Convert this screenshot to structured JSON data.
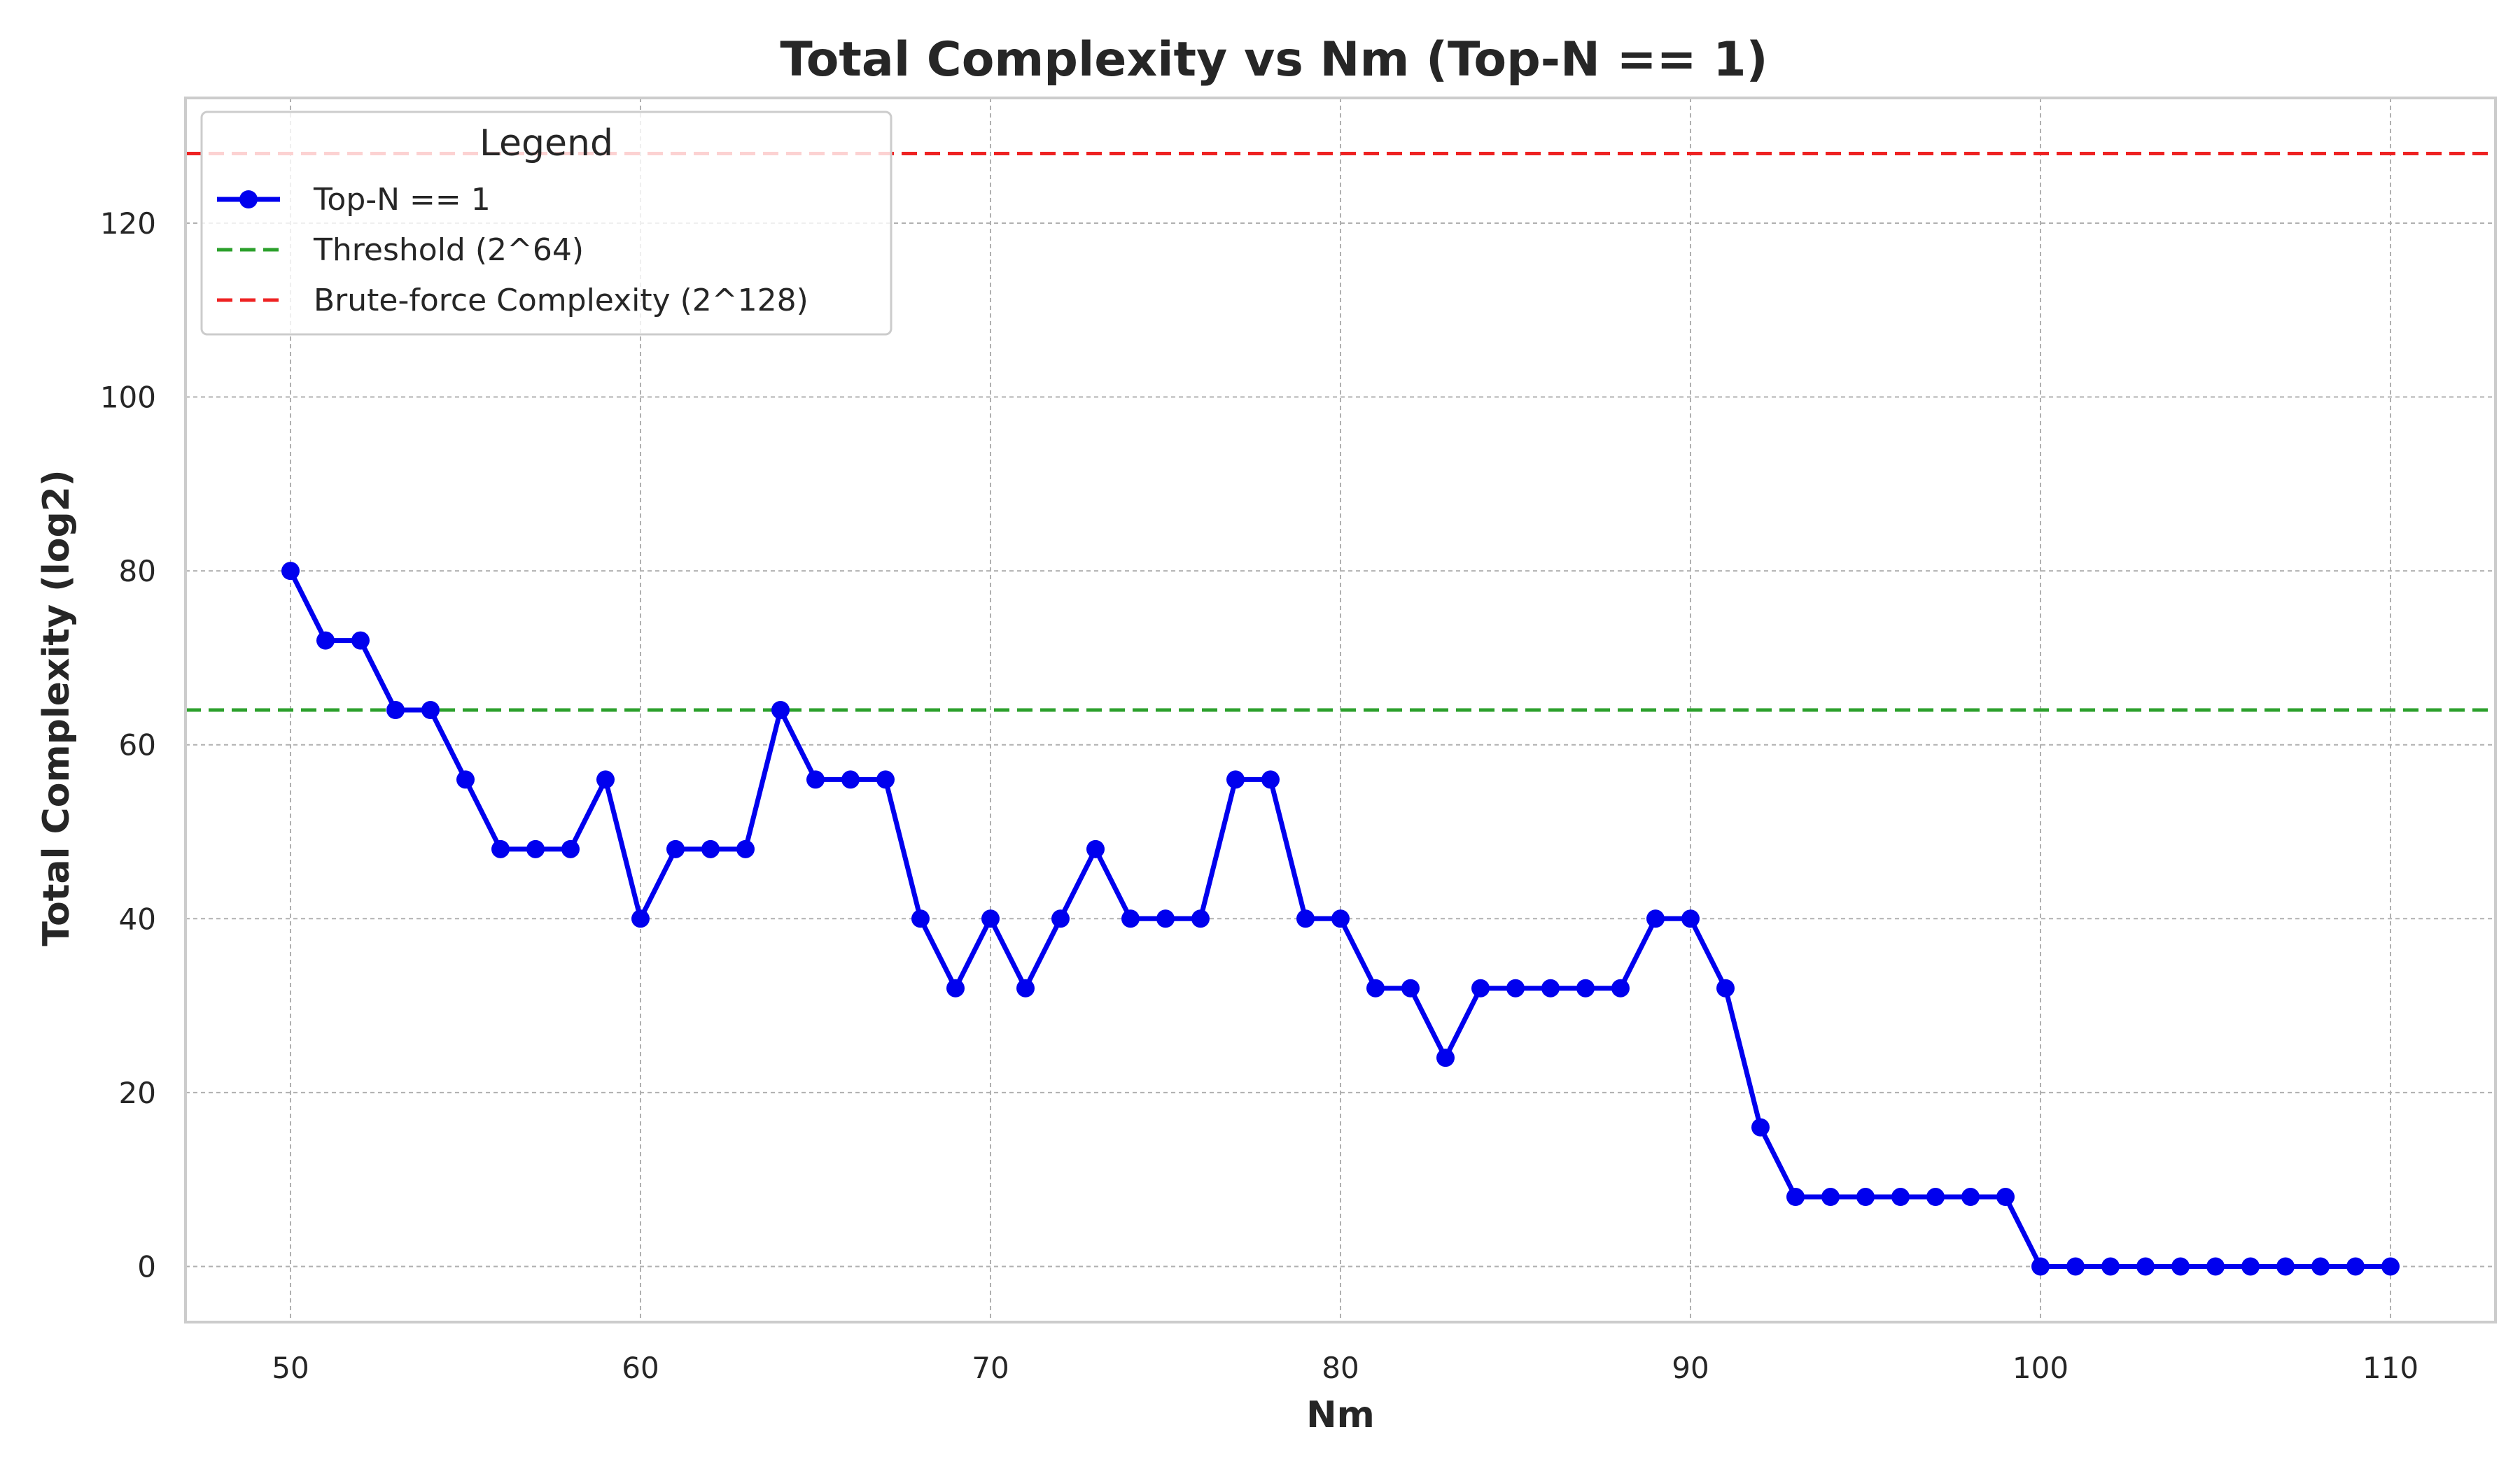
{
  "chart_data": {
    "type": "line",
    "title": "Total Complexity vs Nm (Top-N == 1)",
    "xlabel": "Nm",
    "ylabel": "Total Complexity (log2)",
    "xlim": [
      47,
      113
    ],
    "ylim": [
      -6.4,
      134.4
    ],
    "xticks": [
      50,
      60,
      70,
      80,
      90,
      100,
      110
    ],
    "yticks": [
      0,
      20,
      40,
      60,
      80,
      100,
      120
    ],
    "grid": true,
    "legend": {
      "title": "Legend",
      "placement": "top-left",
      "entries": [
        {
          "label": "Top-N == 1",
          "color": "#0000ee",
          "style": "line-marker"
        },
        {
          "label": "Threshold (2^64)",
          "color": "#2ca02c",
          "style": "dashed"
        },
        {
          "label": "Brute-force Complexity (2^128)",
          "color": "#ee2222",
          "style": "dashed"
        }
      ]
    },
    "series": [
      {
        "name": "Top-N == 1",
        "color": "#0000ee",
        "x": [
          50,
          51,
          52,
          53,
          54,
          55,
          56,
          57,
          58,
          59,
          60,
          61,
          62,
          63,
          64,
          65,
          66,
          67,
          68,
          69,
          70,
          71,
          72,
          73,
          74,
          75,
          76,
          77,
          78,
          79,
          80,
          81,
          82,
          83,
          84,
          85,
          86,
          87,
          88,
          89,
          90,
          91,
          92,
          93,
          94,
          95,
          96,
          97,
          98,
          99,
          100,
          101,
          102,
          103,
          104,
          105,
          106,
          107,
          108,
          109,
          110
        ],
        "y": [
          80,
          72,
          72,
          64,
          64,
          56,
          48,
          48,
          48,
          56,
          40,
          48,
          48,
          48,
          64,
          56,
          56,
          56,
          40,
          32,
          40,
          32,
          40,
          48,
          40,
          40,
          40,
          56,
          56,
          40,
          40,
          32,
          32,
          24,
          32,
          32,
          32,
          32,
          32,
          40,
          40,
          32,
          16,
          8,
          8,
          8,
          8,
          8,
          8,
          8,
          0,
          0,
          0,
          0,
          0,
          0,
          0,
          0,
          0,
          0,
          0
        ]
      }
    ],
    "reference_lines": [
      {
        "name": "Threshold (2^64)",
        "y": 64,
        "color": "#2ca02c"
      },
      {
        "name": "Brute-force Complexity (2^128)",
        "y": 128,
        "color": "#ee2222"
      }
    ]
  }
}
